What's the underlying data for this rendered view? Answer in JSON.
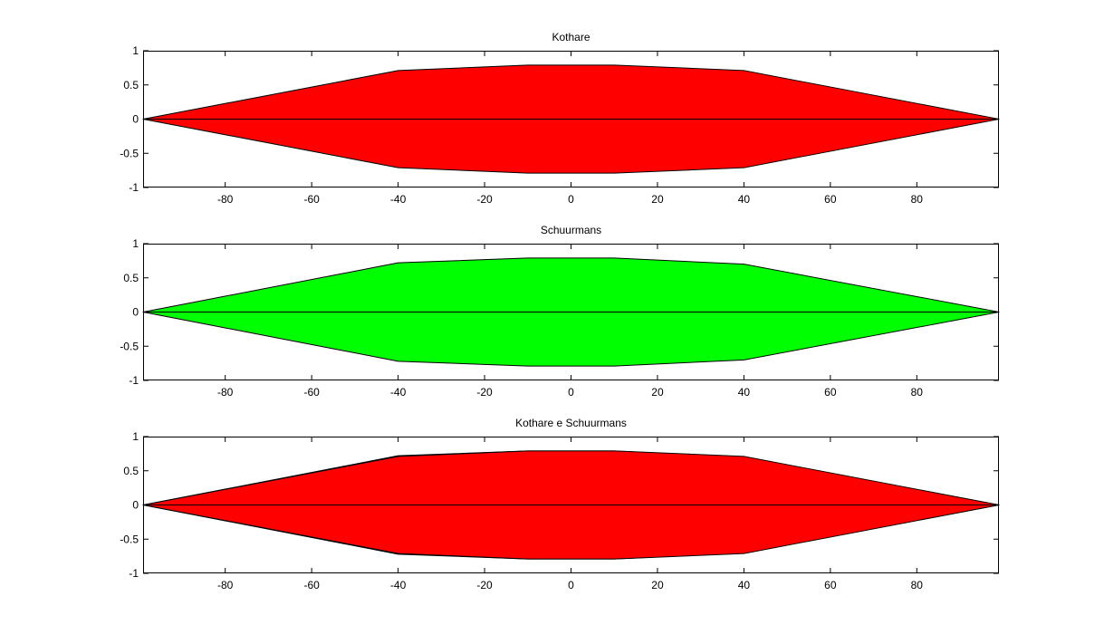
{
  "figure": {
    "background": "#ffffff"
  },
  "chart_data": [
    {
      "type": "area",
      "title": "Kothare",
      "xlabel": "",
      "ylabel": "",
      "xlim": [
        -99,
        99
      ],
      "ylim": [
        -1,
        1
      ],
      "xticks": [
        -80,
        -60,
        -40,
        -20,
        0,
        20,
        40,
        60,
        80
      ],
      "yticks": [
        1,
        0.5,
        0,
        -0.5,
        -1
      ],
      "ytick_labels": [
        "1",
        "0.5",
        "0",
        "-0.5",
        "-1"
      ],
      "grid": false,
      "legend": "none",
      "series": [
        {
          "fill": "#ff0000",
          "points": [
            [
              -99,
              0
            ],
            [
              -40,
              0.71
            ],
            [
              -10,
              0.79
            ],
            [
              10,
              0.79
            ],
            [
              40,
              0.71
            ],
            [
              99,
              0
            ],
            [
              40,
              -0.71
            ],
            [
              10,
              -0.79
            ],
            [
              -10,
              -0.79
            ],
            [
              -40,
              -0.71
            ]
          ]
        }
      ]
    },
    {
      "type": "area",
      "title": "Schuurmans",
      "xlabel": "",
      "ylabel": "",
      "xlim": [
        -99,
        99
      ],
      "ylim": [
        -1,
        1
      ],
      "xticks": [
        -80,
        -60,
        -40,
        -20,
        0,
        20,
        40,
        60,
        80
      ],
      "yticks": [
        1,
        0.5,
        0,
        -0.5,
        -1
      ],
      "ytick_labels": [
        "1",
        "0.5",
        "0",
        "-0.5",
        "-1"
      ],
      "grid": false,
      "legend": "none",
      "series": [
        {
          "fill": "#00ff00",
          "points": [
            [
              -99,
              0
            ],
            [
              -40,
              0.72
            ],
            [
              -10,
              0.79
            ],
            [
              10,
              0.79
            ],
            [
              40,
              0.7
            ],
            [
              99,
              0
            ],
            [
              40,
              -0.7
            ],
            [
              10,
              -0.79
            ],
            [
              -10,
              -0.79
            ],
            [
              -40,
              -0.72
            ]
          ]
        }
      ]
    },
    {
      "type": "area",
      "title": "Kothare e Schuurmans",
      "xlabel": "",
      "ylabel": "",
      "xlim": [
        -99,
        99
      ],
      "ylim": [
        -1,
        1
      ],
      "xticks": [
        -80,
        -60,
        -40,
        -20,
        0,
        20,
        40,
        60,
        80
      ],
      "yticks": [
        1,
        0.5,
        0,
        -0.5,
        -1
      ],
      "ytick_labels": [
        "1",
        "0.5",
        "0",
        "-0.5",
        "-1"
      ],
      "grid": false,
      "legend": "none",
      "series": [
        {
          "fill": "#00ff00",
          "points": [
            [
              -99,
              0
            ],
            [
              -40,
              0.72
            ],
            [
              -10,
              0.79
            ],
            [
              10,
              0.79
            ],
            [
              40,
              0.7
            ],
            [
              99,
              0
            ],
            [
              40,
              -0.7
            ],
            [
              10,
              -0.79
            ],
            [
              -10,
              -0.79
            ],
            [
              -40,
              -0.72
            ]
          ]
        },
        {
          "fill": "#ff0000",
          "points": [
            [
              -99,
              0
            ],
            [
              -40,
              0.71
            ],
            [
              -10,
              0.79
            ],
            [
              10,
              0.79
            ],
            [
              40,
              0.71
            ],
            [
              99,
              0
            ],
            [
              40,
              -0.71
            ],
            [
              10,
              -0.79
            ],
            [
              -10,
              -0.79
            ],
            [
              -40,
              -0.71
            ]
          ]
        }
      ]
    }
  ]
}
